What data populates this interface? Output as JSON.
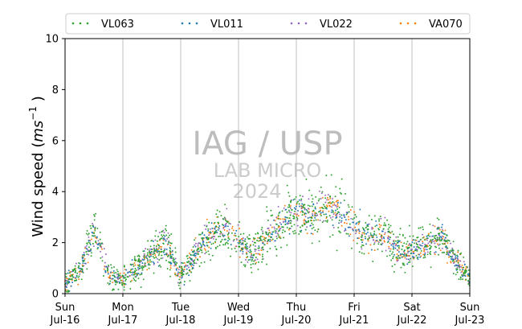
{
  "chart_data": {
    "type": "scatter",
    "ylabel_main": "Wind speed (",
    "ylabel_unit": "ms",
    "ylabel_exp": "−1",
    "ylabel_close": " )",
    "ylim": [
      0,
      10
    ],
    "yticks": [
      "0",
      "2",
      "4",
      "6",
      "8",
      "10"
    ],
    "xlim": [
      "2023-07-16",
      "2023-07-23"
    ],
    "xticks": [
      {
        "day": "Sun",
        "date": "Jul-16"
      },
      {
        "day": "Mon",
        "date": "Jul-17"
      },
      {
        "day": "Tue",
        "date": "Jul-18"
      },
      {
        "day": "Wed",
        "date": "Jul-19"
      },
      {
        "day": "Thu",
        "date": "Jul-20"
      },
      {
        "day": "Fri",
        "date": "Jul-21"
      },
      {
        "day": "Sat",
        "date": "Jul-22"
      },
      {
        "day": "Sun",
        "date": "Jul-23"
      }
    ],
    "grid": "vertical",
    "legend_position": "top",
    "series": [
      {
        "name": "VL063",
        "color": "#2ca02c"
      },
      {
        "name": "VL011",
        "color": "#1f77b4"
      },
      {
        "name": "VL022",
        "color": "#9467bd"
      },
      {
        "name": "VA070",
        "color": "#ff7f0e"
      }
    ],
    "daily_profile": {
      "x_day": [
        0,
        0.25,
        0.5,
        0.75,
        1,
        1.25,
        1.5,
        1.75,
        2,
        2.25,
        2.5,
        2.75,
        3,
        3.25,
        3.5,
        3.75,
        4,
        4.25,
        4.5,
        4.75,
        5,
        5.25,
        5.5,
        5.75,
        6,
        6.25,
        6.5,
        6.75,
        7
      ],
      "y_ms": [
        0.4,
        0.8,
        2.5,
        0.8,
        0.5,
        1.0,
        1.5,
        2.0,
        0.6,
        1.6,
        2.3,
        2.7,
        2.0,
        1.5,
        2.2,
        2.8,
        3.2,
        3.0,
        3.5,
        3.1,
        2.6,
        2.3,
        2.4,
        1.7,
        1.7,
        2.0,
        2.3,
        1.3,
        0.6
      ]
    },
    "watermark": {
      "line1": "IAG / USP",
      "line2": "LAB MICRO",
      "line3": "2024"
    }
  }
}
